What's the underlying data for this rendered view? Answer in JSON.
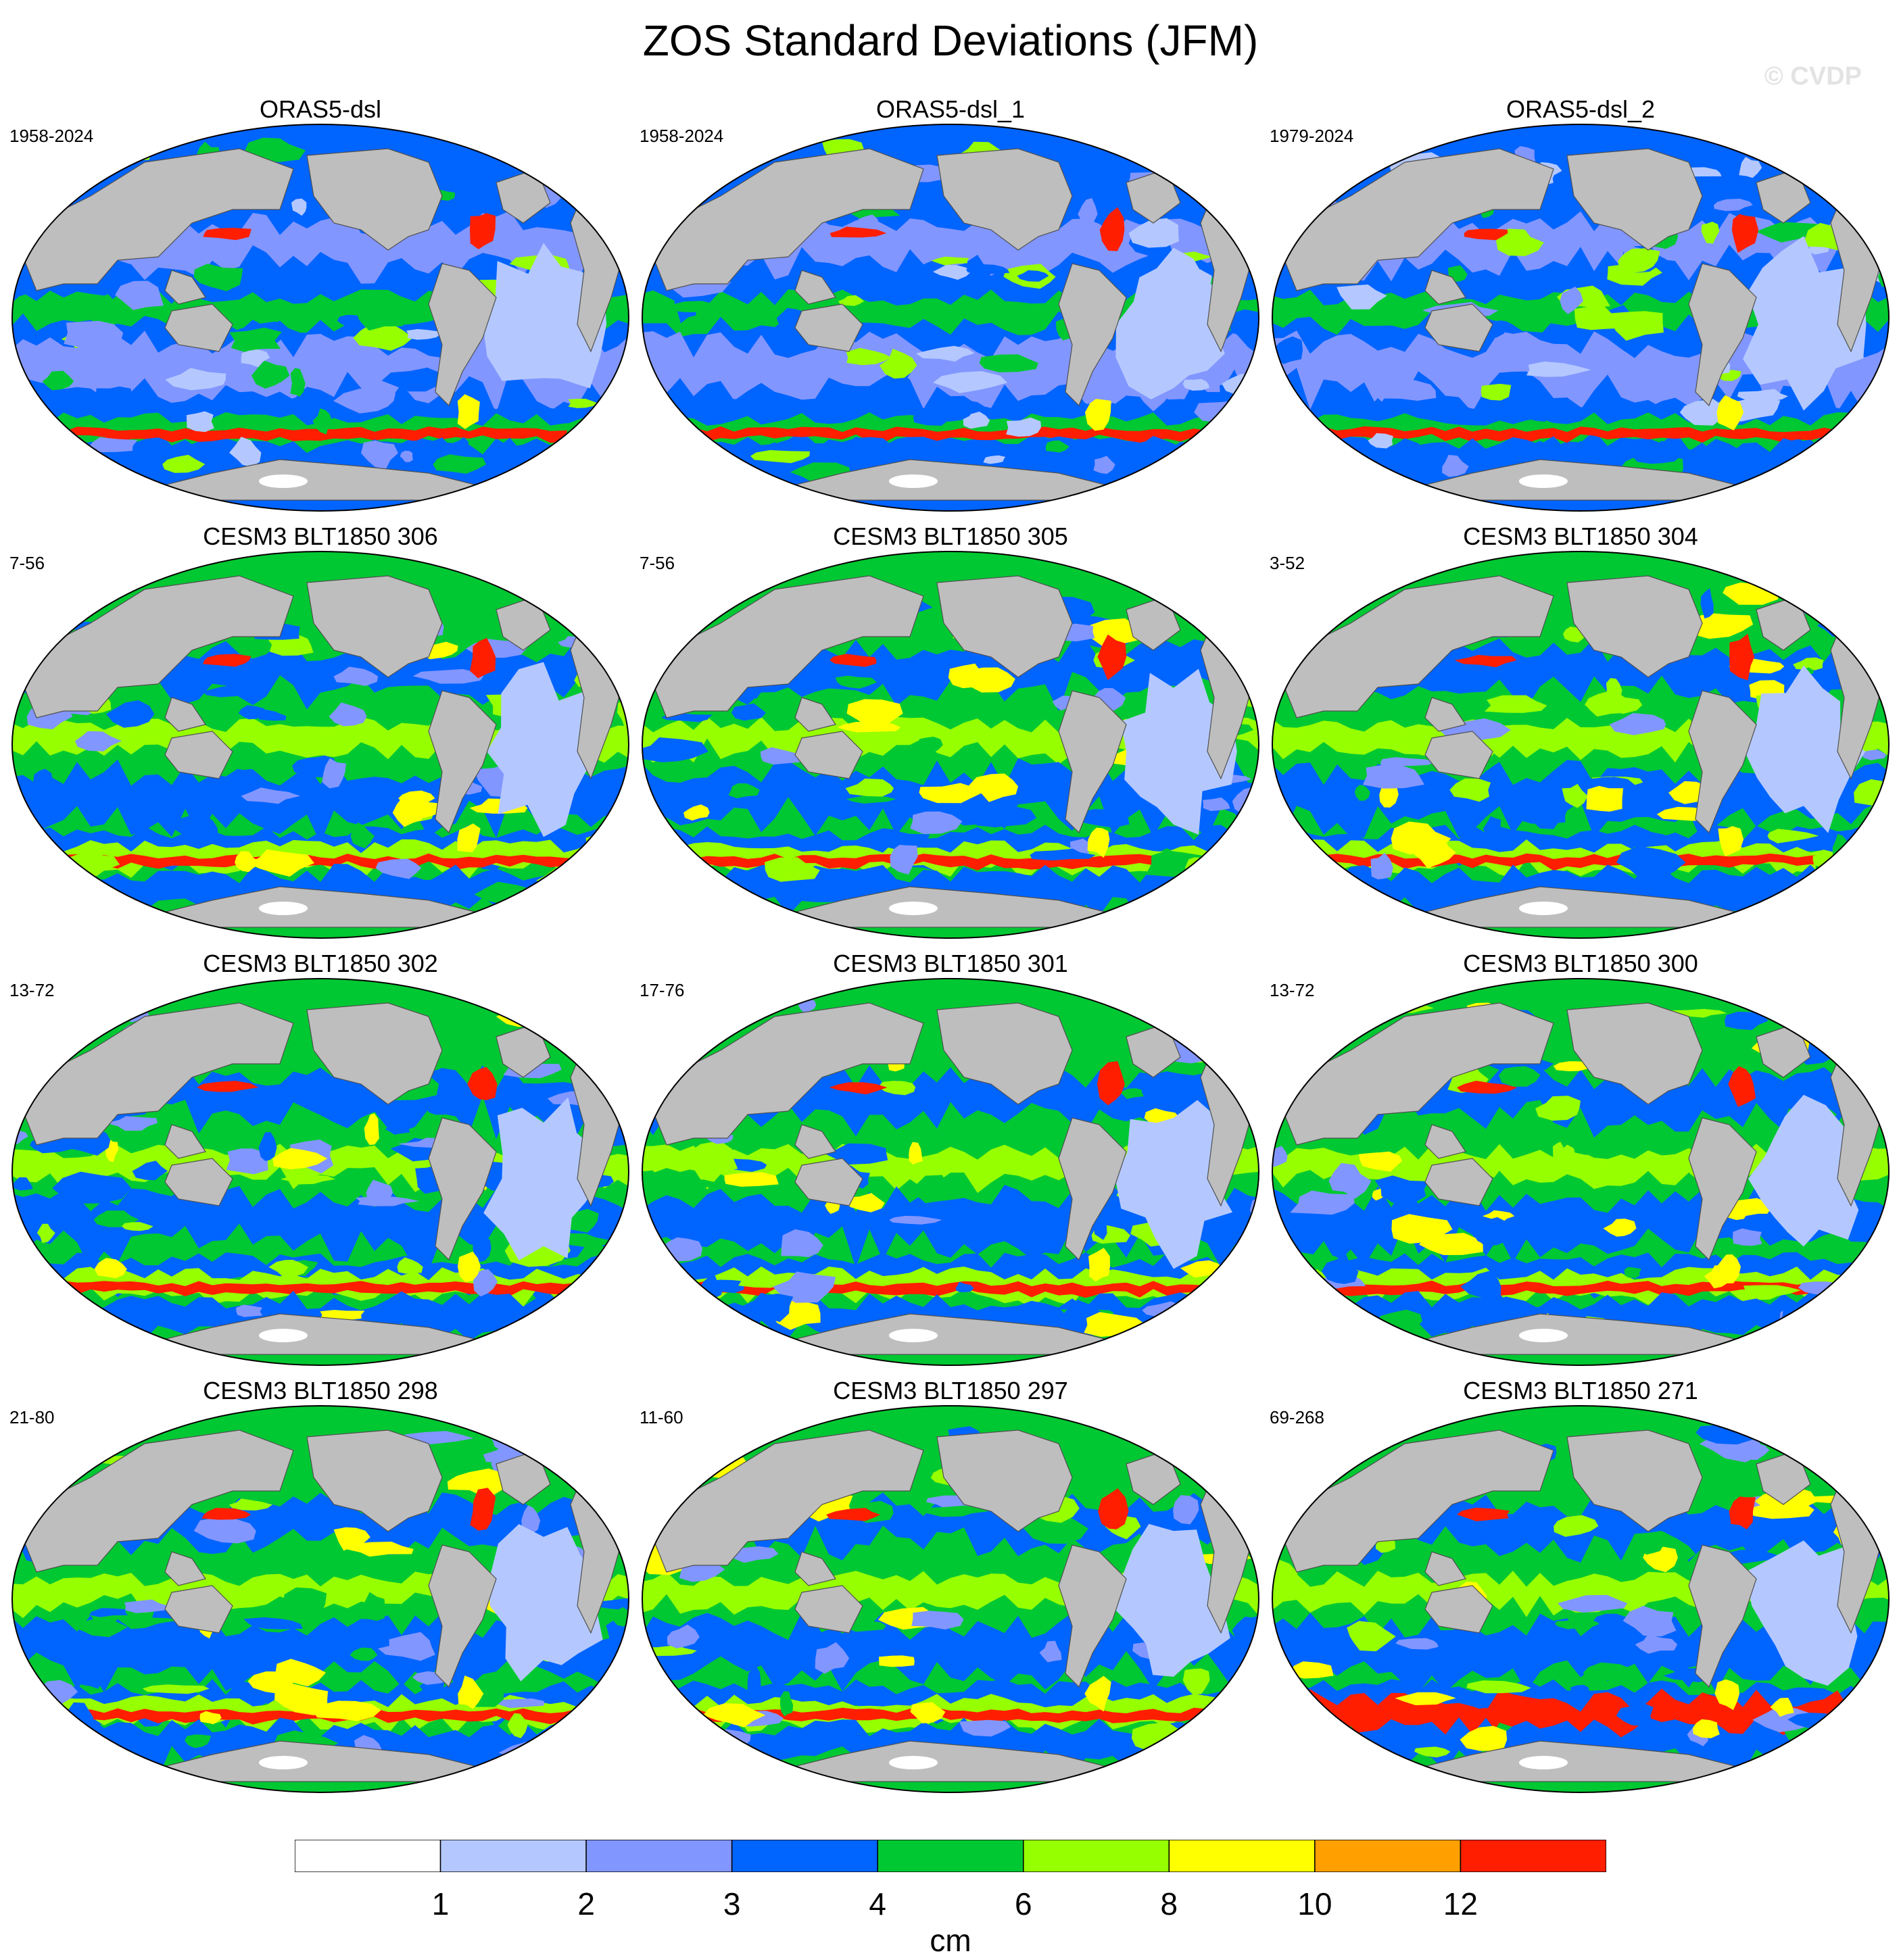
{
  "title": "ZOS Standard Deviations (JFM)",
  "watermark": "© CVDP",
  "panels": [
    {
      "name": "ORAS5-dsl",
      "years": "1958-2024"
    },
    {
      "name": "ORAS5-dsl_1",
      "years": "1958-2024"
    },
    {
      "name": "ORAS5-dsl_2",
      "years": "1979-2024"
    },
    {
      "name": "CESM3 BLT1850 306",
      "years": "7-56"
    },
    {
      "name": "CESM3 BLT1850 305",
      "years": "7-56"
    },
    {
      "name": "CESM3 BLT1850 304",
      "years": "3-52"
    },
    {
      "name": "CESM3 BLT1850 302",
      "years": "13-72"
    },
    {
      "name": "CESM3 BLT1850 301",
      "years": "17-76"
    },
    {
      "name": "CESM3 BLT1850 300",
      "years": "13-72"
    },
    {
      "name": "CESM3 BLT1850 298",
      "years": "21-80"
    },
    {
      "name": "CESM3 BLT1850 297",
      "years": "11-60"
    },
    {
      "name": "CESM3 BLT1850 271",
      "years": "69-268"
    }
  ],
  "colorbar": {
    "units": "cm",
    "labels": [
      "1",
      "2",
      "3",
      "4",
      "6",
      "8",
      "10",
      "12"
    ],
    "colors": [
      "#ffffff",
      "#b4c8ff",
      "#8296ff",
      "#0064ff",
      "#00c832",
      "#96ff00",
      "#ffff00",
      "#ffa000",
      "#ff1e00"
    ]
  },
  "land_color": "#bebebe"
}
